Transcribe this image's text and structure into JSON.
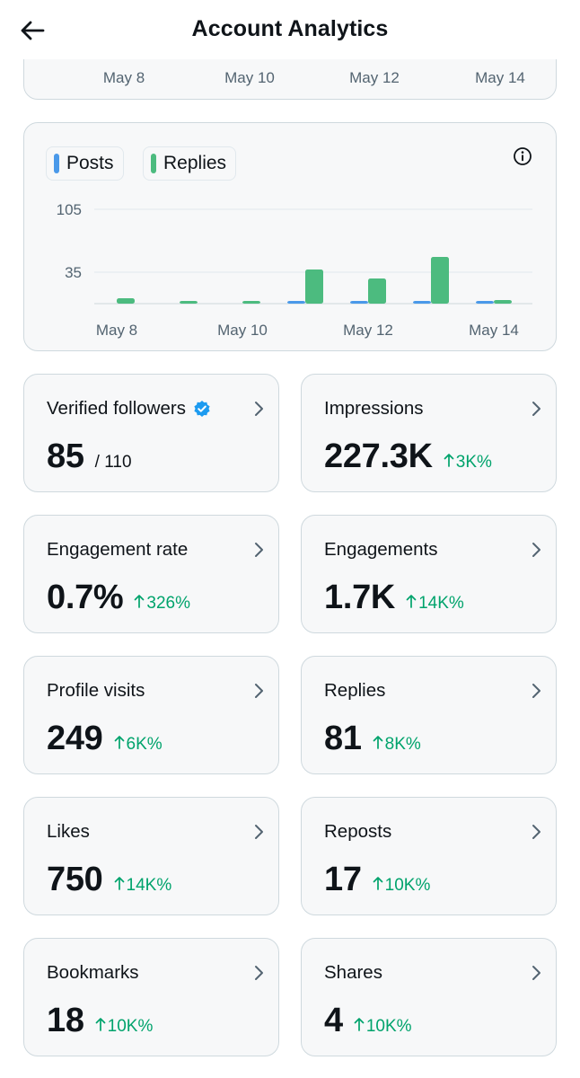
{
  "header": {
    "title": "Account Analytics"
  },
  "top_card": {
    "x_labels": [
      "May 8",
      "May 10",
      "May 12",
      "May 14"
    ]
  },
  "chart": {
    "legend": [
      {
        "label": "Posts",
        "color": "#4a99e9"
      },
      {
        "label": "Replies",
        "color": "#4cbb7f"
      }
    ]
  },
  "chart_data": {
    "type": "bar",
    "categories": [
      "May 8",
      "May 9",
      "May 10",
      "May 11",
      "May 12",
      "May 13",
      "May 14"
    ],
    "series": [
      {
        "name": "Posts",
        "color": "#4a99e9",
        "values": [
          0,
          0,
          0,
          2,
          1,
          3,
          1
        ]
      },
      {
        "name": "Replies",
        "color": "#4cbb7f",
        "values": [
          6,
          1,
          3,
          38,
          28,
          52,
          4
        ]
      }
    ],
    "ytick_values": [
      35,
      105
    ],
    "ytick_labels": [
      "35",
      "105"
    ],
    "xtick_labels": [
      "May 8",
      "May 10",
      "May 12",
      "May 14"
    ],
    "ylim": [
      0,
      105
    ],
    "grid": true,
    "legend": "top-left"
  },
  "metrics": [
    {
      "label": "Verified followers",
      "verified": true,
      "value": "85",
      "sub": "/ 110",
      "change": ""
    },
    {
      "label": "Impressions",
      "value": "227.3K",
      "sub": "",
      "change": "3K%"
    },
    {
      "label": "Engagement rate",
      "value": "0.7%",
      "sub": "",
      "change": "326%"
    },
    {
      "label": "Engagements",
      "value": "1.7K",
      "sub": "",
      "change": "14K%"
    },
    {
      "label": "Profile visits",
      "value": "249",
      "sub": "",
      "change": "6K%"
    },
    {
      "label": "Replies",
      "value": "81",
      "sub": "",
      "change": "8K%"
    },
    {
      "label": "Likes",
      "value": "750",
      "sub": "",
      "change": "14K%"
    },
    {
      "label": "Reposts",
      "value": "17",
      "sub": "",
      "change": "10K%"
    },
    {
      "label": "Bookmarks",
      "value": "18",
      "sub": "",
      "change": "10K%"
    },
    {
      "label": "Shares",
      "value": "4",
      "sub": "",
      "change": "10K%"
    }
  ],
  "icons": {
    "back": "arrow-left-icon",
    "info": "info-circle-icon",
    "verified": "verified-badge-icon",
    "chevron": "chevron-right-icon",
    "change": "arrow-up-icon"
  }
}
